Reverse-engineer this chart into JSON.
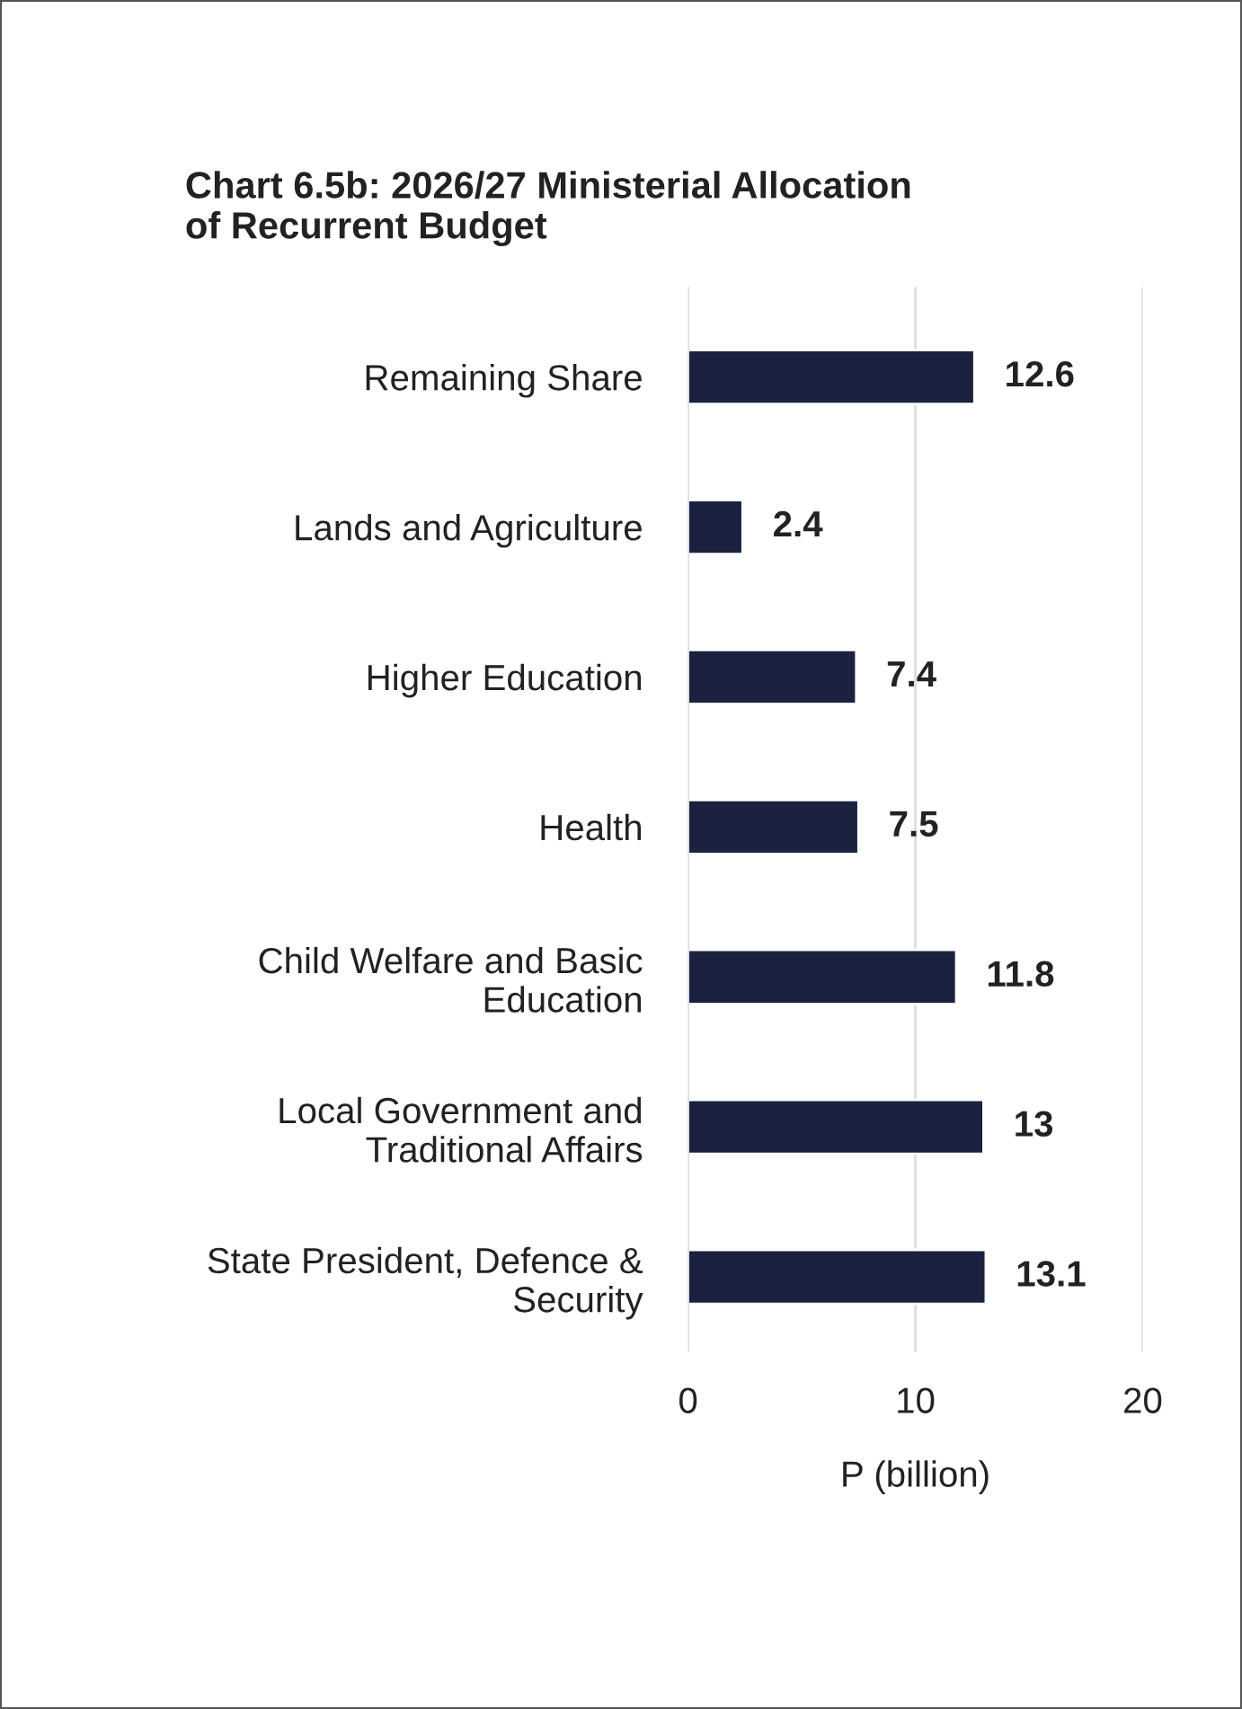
{
  "chart_data": {
    "type": "bar",
    "orientation": "horizontal",
    "title": "Chart 6.5b: 2026/27 Ministerial Allocation\nof Recurrent Budget",
    "xlabel": "P (billion)",
    "categories": [
      "Remaining Share",
      "Lands and Agriculture",
      "Higher Education",
      "Health",
      "Child Welfare and Basic\nEducation",
      "Local Government and\nTraditional Affairs",
      "State President, Defence &\nSecurity"
    ],
    "values": [
      12.6,
      2.4,
      7.4,
      7.5,
      11.8,
      13,
      13.1
    ],
    "color": "#1b2240",
    "xlim": [
      0,
      20
    ],
    "xticks": [
      0,
      10,
      20
    ],
    "grid": "x",
    "data_labels": true,
    "legend": false
  }
}
